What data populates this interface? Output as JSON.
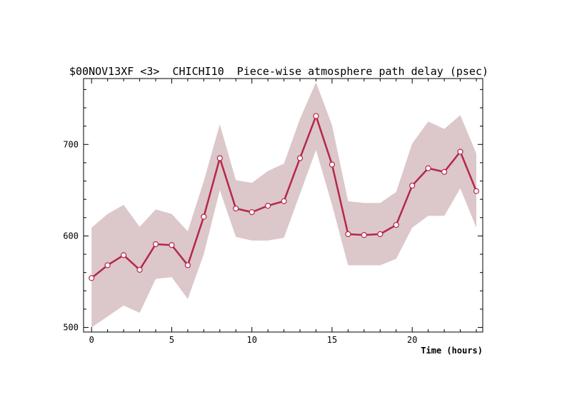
{
  "chart_data": {
    "type": "line",
    "title": "$00NOV13XF <3>  CHICHI10  Piece-wise atmosphere path delay (psec)",
    "xlabel": "Time (hours)",
    "ylabel": "",
    "xlim": [
      -0.5,
      24.4
    ],
    "ylim": [
      495,
      772
    ],
    "x_ticks": [
      0,
      5,
      10,
      15,
      20
    ],
    "y_ticks": [
      500,
      600,
      700
    ],
    "x": [
      0,
      1,
      2,
      3,
      4,
      5,
      6,
      7,
      8,
      9,
      10,
      11,
      12,
      13,
      14,
      15,
      16,
      17,
      18,
      19,
      20,
      21,
      22,
      23,
      24
    ],
    "series": [
      {
        "values": [
          554,
          568,
          579,
          563,
          591,
          590,
          568,
          621,
          685,
          630,
          626,
          633,
          638,
          685,
          731,
          678,
          602,
          601,
          602,
          612,
          655,
          674,
          670,
          692,
          649
        ],
        "band_upper": [
          609,
          624,
          634,
          610,
          629,
          624,
          605,
          660,
          722,
          661,
          658,
          671,
          679,
          728,
          768,
          721,
          638,
          636,
          636,
          648,
          701,
          725,
          717,
          732,
          690
        ],
        "band_lower": [
          500,
          512,
          524,
          516,
          553,
          555,
          531,
          580,
          650,
          599,
          595,
          595,
          598,
          646,
          694,
          634,
          568,
          568,
          568,
          575,
          609,
          622,
          622,
          652,
          609
        ],
        "line_color": "#b52748",
        "band_color": "#dcc7ca"
      }
    ],
    "grid": false,
    "legend": "none"
  }
}
